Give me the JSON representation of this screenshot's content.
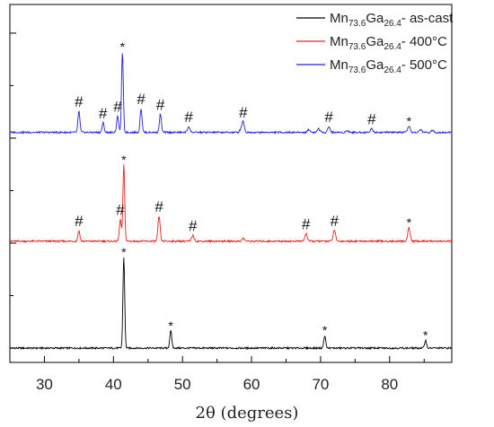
{
  "chart_data": {
    "type": "line",
    "title": "",
    "xlabel": "2θ (degrees)",
    "ylabel": "",
    "xlim": [
      25,
      89
    ],
    "xticks": [
      30,
      40,
      50,
      60,
      70,
      80
    ],
    "y_ticks_labeled": false,
    "grid": false,
    "legend_position": "top-right",
    "series": [
      {
        "name_main": "Mn",
        "name_sub1": "73.6",
        "name_mid": "Ga",
        "name_sub2": "26.4",
        "name_suffix": "- as-cast",
        "color": "#000000",
        "baseline": 0.0,
        "peaks": [
          {
            "x": 41.5,
            "height": 9.5,
            "width": 0.18,
            "marker": "*"
          },
          {
            "x": 48.3,
            "height": 1.8,
            "width": 0.2,
            "marker": "*"
          },
          {
            "x": 70.6,
            "height": 1.3,
            "width": 0.2,
            "marker": "*"
          },
          {
            "x": 85.2,
            "height": 0.8,
            "width": 0.2,
            "marker": "*"
          }
        ]
      },
      {
        "name_main": "Mn",
        "name_sub1": "73.6",
        "name_mid": "Ga",
        "name_sub2": "26.4",
        "name_suffix": "- 400°C",
        "color": "#e8221c",
        "baseline": 11.2,
        "peaks": [
          {
            "x": 35.0,
            "height": 1.1,
            "width": 0.2,
            "marker": "#"
          },
          {
            "x": 41.0,
            "height": 2.3,
            "width": 0.2,
            "marker": "#"
          },
          {
            "x": 41.5,
            "height": 8.0,
            "width": 0.18,
            "marker": "*"
          },
          {
            "x": 46.6,
            "height": 2.6,
            "width": 0.22,
            "marker": "#"
          },
          {
            "x": 51.5,
            "height": 0.6,
            "width": 0.25,
            "marker": "#"
          },
          {
            "x": 58.8,
            "height": 0.3,
            "width": 0.25,
            "marker": ""
          },
          {
            "x": 67.9,
            "height": 0.8,
            "width": 0.25,
            "marker": "#"
          },
          {
            "x": 72.0,
            "height": 1.1,
            "width": 0.25,
            "marker": "#"
          },
          {
            "x": 82.8,
            "height": 1.4,
            "width": 0.25,
            "marker": "*"
          }
        ]
      },
      {
        "name_main": "Mn",
        "name_sub1": "73.6",
        "name_mid": "Ga",
        "name_sub2": "26.4",
        "name_suffix": "- 500°C",
        "color": "#2222dd",
        "baseline": 22.6,
        "peaks": [
          {
            "x": 35.0,
            "height": 2.2,
            "width": 0.2,
            "marker": "#"
          },
          {
            "x": 38.5,
            "height": 1.0,
            "width": 0.2,
            "marker": "#"
          },
          {
            "x": 40.6,
            "height": 1.7,
            "width": 0.2,
            "marker": "#"
          },
          {
            "x": 41.3,
            "height": 8.4,
            "width": 0.18,
            "marker": "*"
          },
          {
            "x": 44.0,
            "height": 2.5,
            "width": 0.2,
            "marker": "#"
          },
          {
            "x": 46.8,
            "height": 1.9,
            "width": 0.2,
            "marker": "#"
          },
          {
            "x": 50.9,
            "height": 0.6,
            "width": 0.25,
            "marker": "#"
          },
          {
            "x": 58.5,
            "height": 0.4,
            "width": 0.25,
            "marker": ""
          },
          {
            "x": 58.8,
            "height": 1.1,
            "width": 0.22,
            "marker": "#"
          },
          {
            "x": 68.3,
            "height": 0.3,
            "width": 0.25,
            "marker": ""
          },
          {
            "x": 69.7,
            "height": 0.4,
            "width": 0.25,
            "marker": ""
          },
          {
            "x": 71.2,
            "height": 0.6,
            "width": 0.25,
            "marker": "#"
          },
          {
            "x": 73.9,
            "height": 0.2,
            "width": 0.25,
            "marker": ""
          },
          {
            "x": 77.4,
            "height": 0.4,
            "width": 0.25,
            "marker": "#"
          },
          {
            "x": 82.8,
            "height": 0.6,
            "width": 0.25,
            "marker": "*"
          },
          {
            "x": 84.5,
            "height": 0.3,
            "width": 0.25,
            "marker": ""
          },
          {
            "x": 86.2,
            "height": 0.2,
            "width": 0.25,
            "marker": ""
          }
        ]
      }
    ],
    "ylim": [
      -1.5,
      36
    ]
  }
}
